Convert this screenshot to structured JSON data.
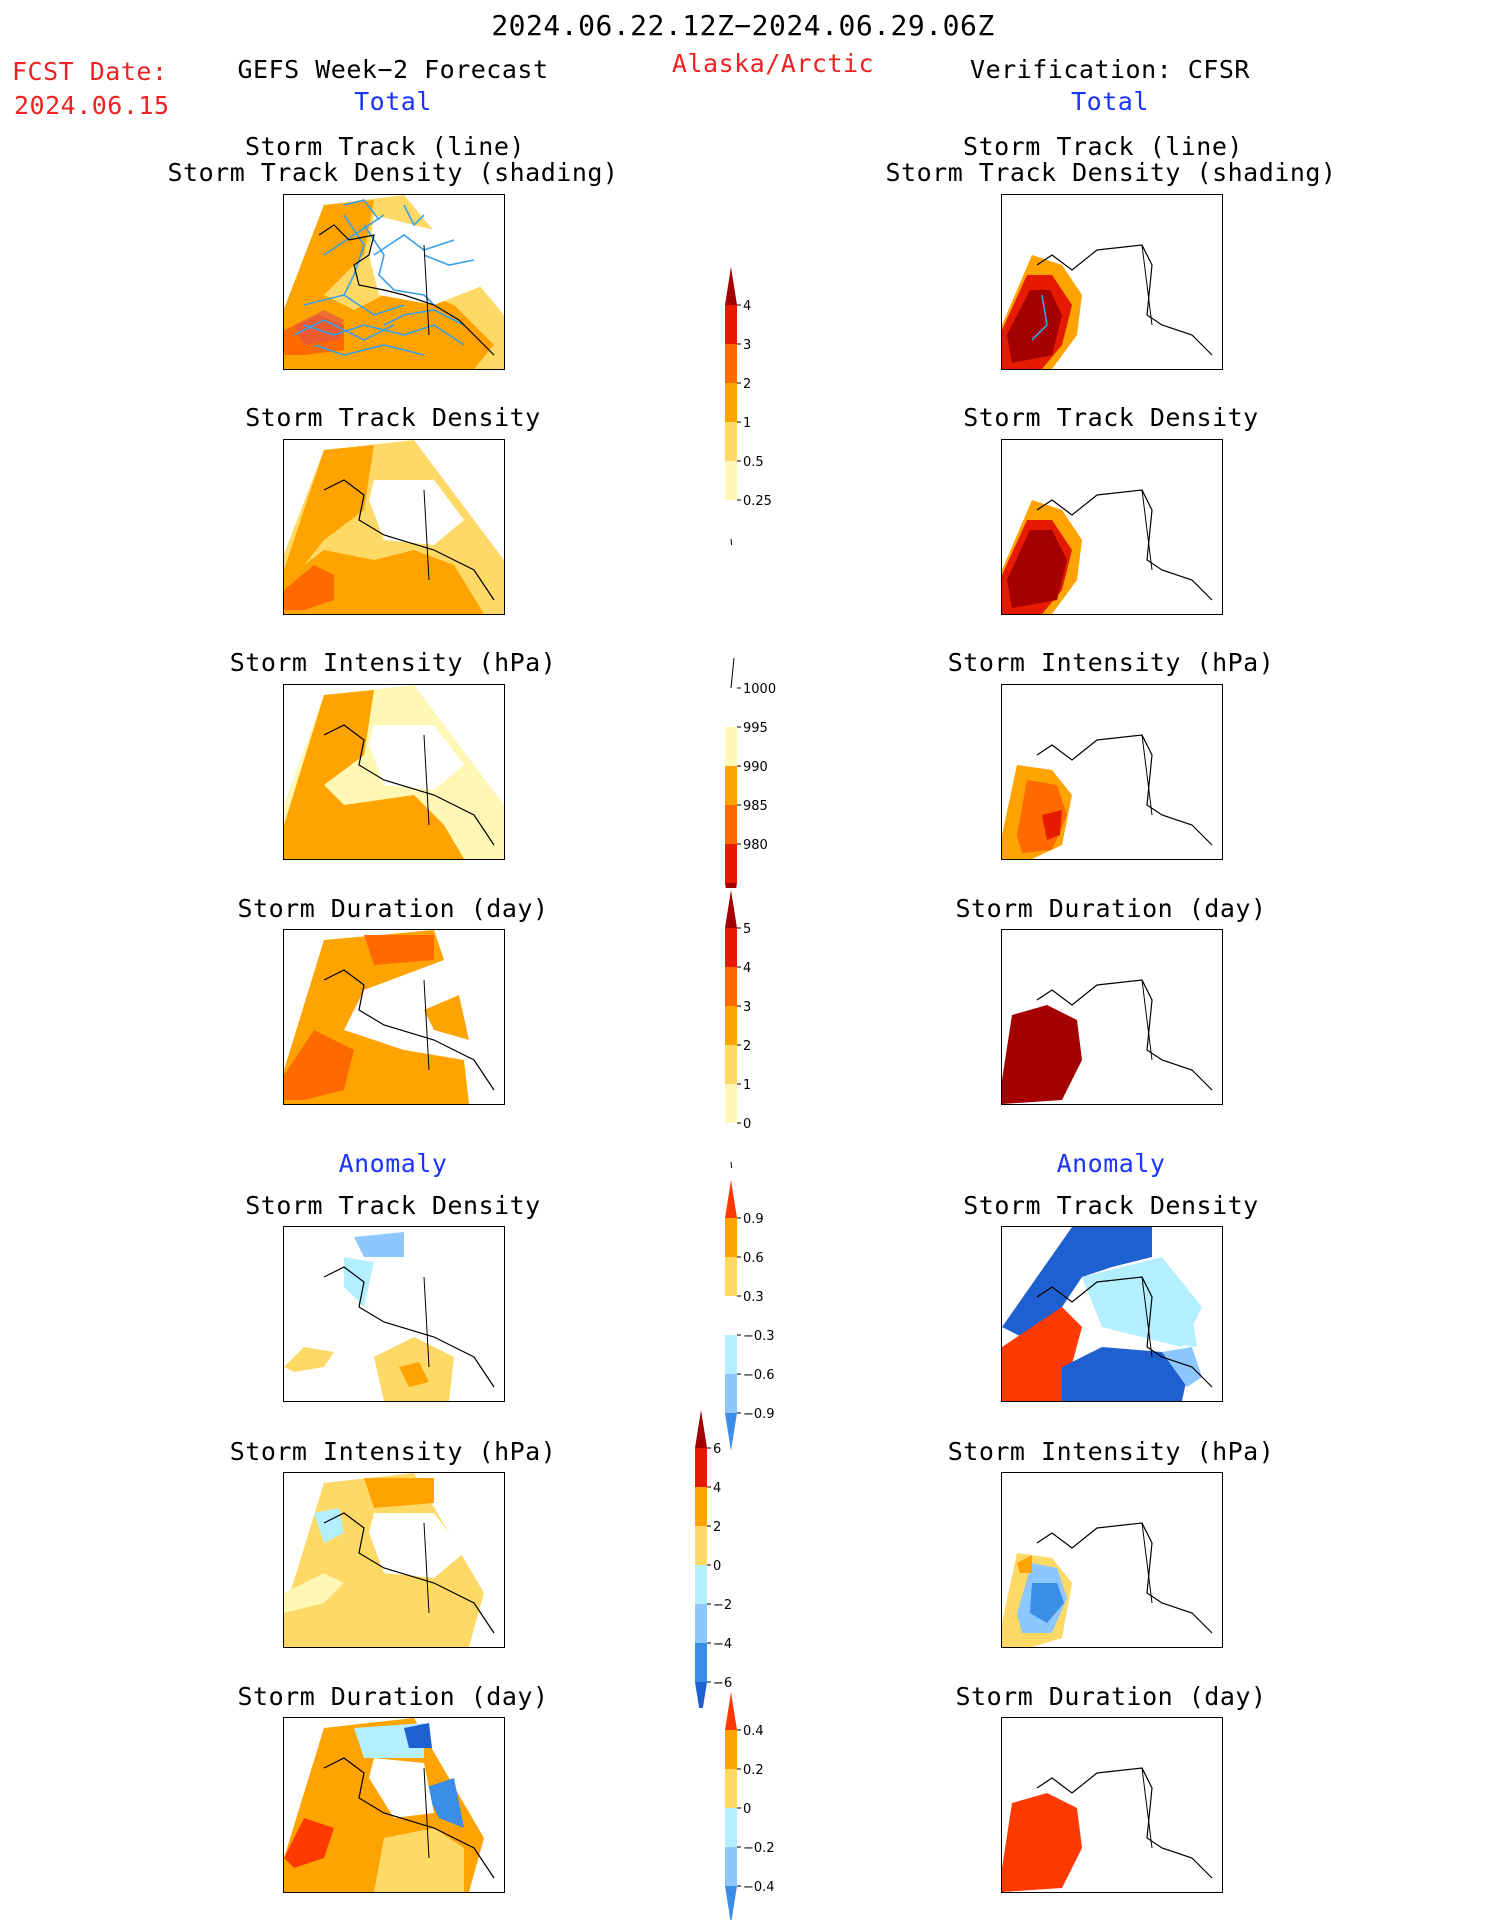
{
  "header": {
    "date_range": "2024.06.22.12Z−2024.06.29.06Z",
    "fcst_label": "FCST Date:",
    "fcst_date": "2024.06.15",
    "left_model": "GEFS Week−2 Forecast",
    "region": "Alaska/Arctic",
    "right_model": "Verification: CFSR",
    "total_label": "Total",
    "anomaly_label": "Anomaly"
  },
  "titles": {
    "track_line": "Storm Track (line)",
    "track_shading": "Storm Track Density (shading)",
    "density": "Storm Track Density",
    "intensity": "Storm Intensity (hPa)",
    "duration": "Storm Duration (day)"
  },
  "colors": {
    "pale_yellow": "#fff7b3",
    "light_orange": "#ffd966",
    "orange": "#ffa300",
    "dark_orange": "#ff6a00",
    "red": "#e61a00",
    "dark_red": "#a50000",
    "light_cyan": "#b3efff",
    "light_blue": "#8cc8ff",
    "mid_blue": "#3a8ee6",
    "dark_blue": "#1e60d0",
    "track_line": "#3aa0e8"
  },
  "chart_data": [
    {
      "type": "heatmap",
      "panel": "GEFS Total - Storm Track (line) / Storm Track Density (shading)",
      "field": "storm_track_density",
      "overlay": "storm tracks (lines)",
      "colorbar": "track_density"
    },
    {
      "type": "heatmap",
      "panel": "CFSR Total - Storm Track (line) / Storm Track Density (shading)",
      "field": "storm_track_density",
      "colorbar": "track_density"
    },
    {
      "type": "heatmap",
      "panel": "GEFS Total - Storm Track Density",
      "colorbar": "track_density"
    },
    {
      "type": "heatmap",
      "panel": "CFSR Total - Storm Track Density",
      "colorbar": "track_density"
    },
    {
      "type": "heatmap",
      "panel": "GEFS Total - Storm Intensity (hPa)",
      "colorbar": "intensity"
    },
    {
      "type": "heatmap",
      "panel": "CFSR Total - Storm Intensity (hPa)",
      "colorbar": "intensity"
    },
    {
      "type": "heatmap",
      "panel": "GEFS Total - Storm Duration (day)",
      "colorbar": "duration"
    },
    {
      "type": "heatmap",
      "panel": "CFSR Total - Storm Duration (day)",
      "colorbar": "duration"
    },
    {
      "type": "heatmap",
      "panel": "GEFS Anomaly - Storm Track Density",
      "colorbar": "density_anomaly"
    },
    {
      "type": "heatmap",
      "panel": "CFSR Anomaly - Storm Track Density",
      "colorbar": "density_anomaly"
    },
    {
      "type": "heatmap",
      "panel": "GEFS Anomaly - Storm Intensity (hPa)",
      "colorbar": "intensity_anomaly"
    },
    {
      "type": "heatmap",
      "panel": "CFSR Anomaly - Storm Intensity (hPa)",
      "colorbar": "intensity_anomaly"
    },
    {
      "type": "heatmap",
      "panel": "GEFS Anomaly - Storm Duration (day)",
      "colorbar": "duration_anomaly"
    },
    {
      "type": "heatmap",
      "panel": "CFSR Anomaly - Storm Duration (day)",
      "colorbar": "duration_anomaly"
    }
  ],
  "colorbars": {
    "track_density": {
      "ticks": [
        "4",
        "3",
        "2",
        "1",
        "0.5",
        "0.25"
      ],
      "colors": [
        "#a50000",
        "#e61a00",
        "#ff6a00",
        "#ffa300",
        "#ffd966",
        "#fff7b3",
        "#ffffff"
      ]
    },
    "intensity": {
      "ticks": [
        "1000",
        "995",
        "990",
        "985",
        "980"
      ],
      "colors": [
        "#ffffff",
        "#fff7b3",
        "#ffa300",
        "#ff6a00",
        "#e61a00",
        "#a50000"
      ]
    },
    "duration": {
      "ticks": [
        "5",
        "4",
        "3",
        "2",
        "1",
        "0"
      ],
      "colors": [
        "#a50000",
        "#e61a00",
        "#ff6a00",
        "#ffa300",
        "#ffd966",
        "#fff7b3",
        "#ffffff"
      ]
    },
    "density_anomaly": {
      "ticks": [
        "0.9",
        "0.6",
        "0.3",
        "−0.3",
        "−0.6",
        "−0.9"
      ],
      "colors": [
        "#ff3a00",
        "#ffa300",
        "#ffd966",
        "#ffffff",
        "#b3efff",
        "#8cc8ff",
        "#3a8ee6"
      ]
    },
    "intensity_anomaly": {
      "ticks": [
        "6",
        "4",
        "2",
        "0",
        "−2",
        "−4",
        "−6"
      ],
      "colors": [
        "#a50000",
        "#e61a00",
        "#ffa300",
        "#ffd966",
        "#b3efff",
        "#8cc8ff",
        "#3a8ee6",
        "#1e60d0"
      ]
    },
    "duration_anomaly": {
      "ticks": [
        "0.4",
        "0.2",
        "0",
        "−0.2",
        "−0.4"
      ],
      "colors": [
        "#ff3a00",
        "#ffa300",
        "#ffd966",
        "#b3efff",
        "#8cc8ff",
        "#3a8ee6"
      ]
    }
  }
}
